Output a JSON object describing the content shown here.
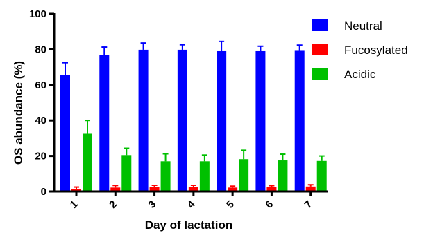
{
  "chart_data": {
    "type": "bar",
    "xlabel": "Day of lactation",
    "ylabel": "OS abundance (%)",
    "ylim": [
      0,
      100
    ],
    "yticks": [
      0,
      20,
      40,
      60,
      80,
      100
    ],
    "categories": [
      "1",
      "2",
      "3",
      "4",
      "5",
      "6",
      "7"
    ],
    "grid": false,
    "legend_position": "top-right",
    "error_bars": true,
    "series": [
      {
        "name": "Neutral",
        "color": "#0000ff",
        "values": [
          65.5,
          76.8,
          79.8,
          79.8,
          79.0,
          79.0,
          79.2
        ],
        "errors": [
          7.0,
          4.5,
          3.8,
          2.8,
          5.5,
          2.8,
          3.2
        ]
      },
      {
        "name": "Fucosylated",
        "color": "#ff0000",
        "values": [
          1.5,
          2.2,
          2.5,
          2.5,
          2.2,
          2.5,
          2.8
        ],
        "errors": [
          1.0,
          1.2,
          1.0,
          1.0,
          0.8,
          0.8,
          1.0
        ]
      },
      {
        "name": "Acidic",
        "color": "#00c000",
        "values": [
          32.5,
          20.5,
          17.0,
          17.0,
          18.2,
          17.5,
          17.2
        ],
        "errors": [
          7.5,
          3.8,
          4.2,
          3.5,
          5.0,
          3.5,
          2.8
        ]
      }
    ]
  }
}
